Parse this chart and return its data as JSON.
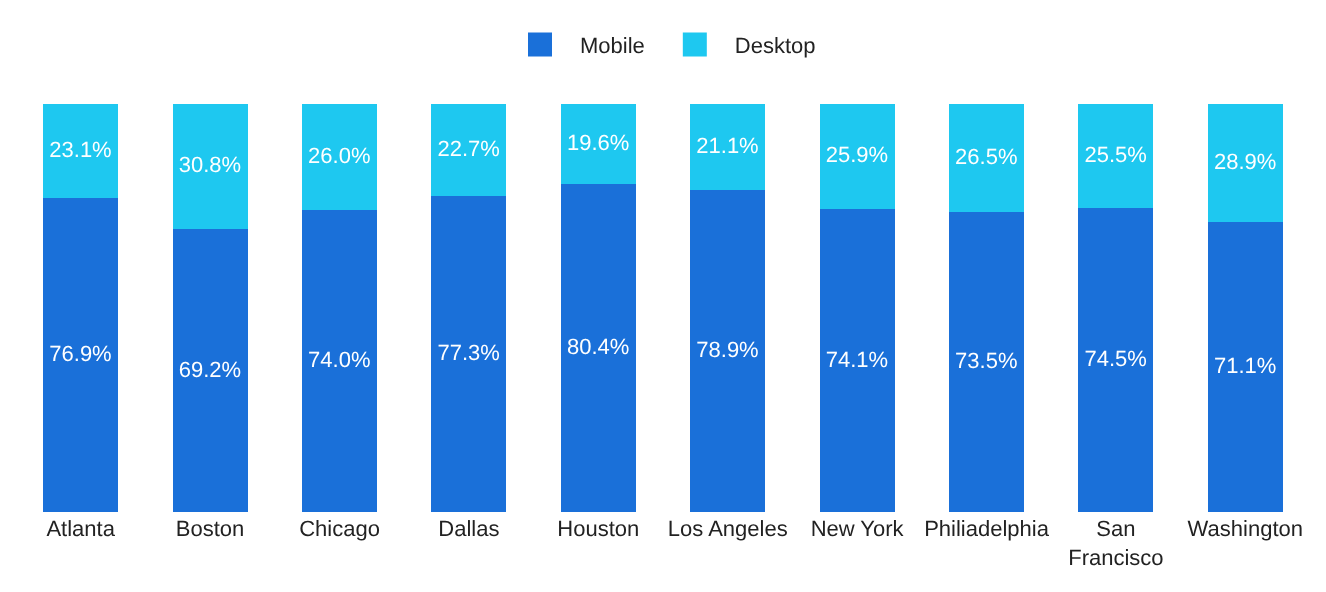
{
  "chart_data": {
    "type": "bar",
    "stacked": true,
    "legend": "top",
    "categories": [
      "Atlanta",
      "Boston",
      "Chicago",
      "Dallas",
      "Houston",
      "Los Angeles",
      "New York",
      "Philiadelphia",
      "San Francisco",
      "Washington"
    ],
    "series": [
      {
        "name": "Mobile",
        "color": "#1a70d9",
        "values": [
          76.9,
          69.2,
          74.0,
          77.3,
          80.4,
          78.9,
          74.1,
          73.5,
          74.5,
          71.1
        ],
        "value_labels": [
          "76.9%",
          "69.2%",
          "74.0%",
          "77.3%",
          "80.4%",
          "78.9%",
          "74.1%",
          "73.5%",
          "74.5%",
          "71.1%"
        ]
      },
      {
        "name": "Desktop",
        "color": "#1ec8f0",
        "values": [
          23.1,
          30.8,
          26.0,
          22.7,
          19.6,
          21.1,
          25.9,
          26.5,
          25.5,
          28.9
        ],
        "value_labels": [
          "23.1%",
          "30.8%",
          "26.0%",
          "22.7%",
          "19.6%",
          "21.1%",
          "25.9%",
          "26.5%",
          "25.5%",
          "28.9%"
        ]
      }
    ]
  }
}
